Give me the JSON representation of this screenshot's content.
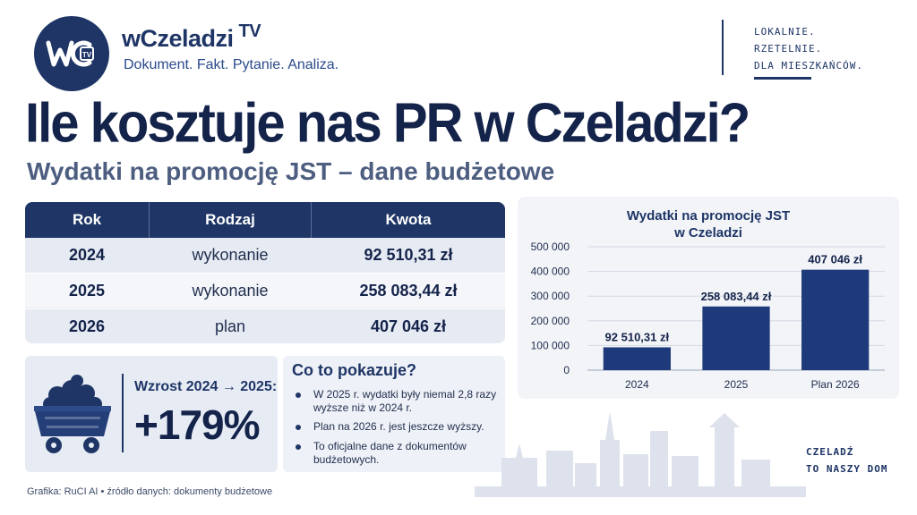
{
  "header": {
    "brand_name": "wCzeladzi",
    "brand_tv": "TV",
    "logo_text": "wC TV",
    "tagline": "Dokument. Fakt. Pytanie. Analiza.",
    "motto": [
      "LOKALNIE.",
      "RZETELNIE.",
      "DLA MIESZKAŃCÓW."
    ]
  },
  "title": "Ile kosztuje nas PR w Czeladzi?",
  "subtitle": "Wydatki na promocję JST – dane budżetowe",
  "table": {
    "headers": [
      "Rok",
      "Rodzaj",
      "Kwota"
    ],
    "rows": [
      [
        "2024",
        "wykonanie",
        "92 510,31 zł"
      ],
      [
        "2025",
        "wykonanie",
        "258 083,44 zł"
      ],
      [
        "2026",
        "plan",
        "407 046 zł"
      ]
    ]
  },
  "growth": {
    "label": "Wzrost 2024 → 2025:",
    "value": "+179%"
  },
  "info": {
    "title": "Co to pokazuje?",
    "bullets": [
      "W 2025 r. wydatki były niemal 2,8 razy wyższe niż w 2024 r.",
      "Plan na 2026 r. jest jeszcze wyższy.",
      "To oficjalne dane z dokumentów budżetowych."
    ]
  },
  "chart_data": {
    "type": "bar",
    "title": "Wydatki na promocję JST w Czeladzi",
    "title_lines": [
      "Wydatki na promocję JST",
      "w Czeladzi"
    ],
    "categories": [
      "2024",
      "2025",
      "Plan 2026"
    ],
    "values": [
      92510.31,
      258083.44,
      407046
    ],
    "data_labels": [
      "92 510,31 zł",
      "258 083,44 zł",
      "407 046 zł"
    ],
    "yticks": [
      0,
      100000,
      200000,
      300000,
      400000,
      500000
    ],
    "ytick_labels": [
      "0",
      "100 000",
      "200 000",
      "300 000",
      "400 000",
      "500 000"
    ],
    "ylim": [
      0,
      500000
    ],
    "grid": true,
    "bar_color": "#1e3a7a"
  },
  "footer": {
    "credit": "Grafika: RuCI AI  •  źródło danych: dokumenty budżetowe",
    "slogan": [
      "CZELADŹ",
      "TO NASZY DOM"
    ]
  },
  "colors": {
    "navy": "#1e3566",
    "dark_navy": "#14234a",
    "row_light": "#e6eaf2",
    "panel": "#f2f4f8"
  }
}
